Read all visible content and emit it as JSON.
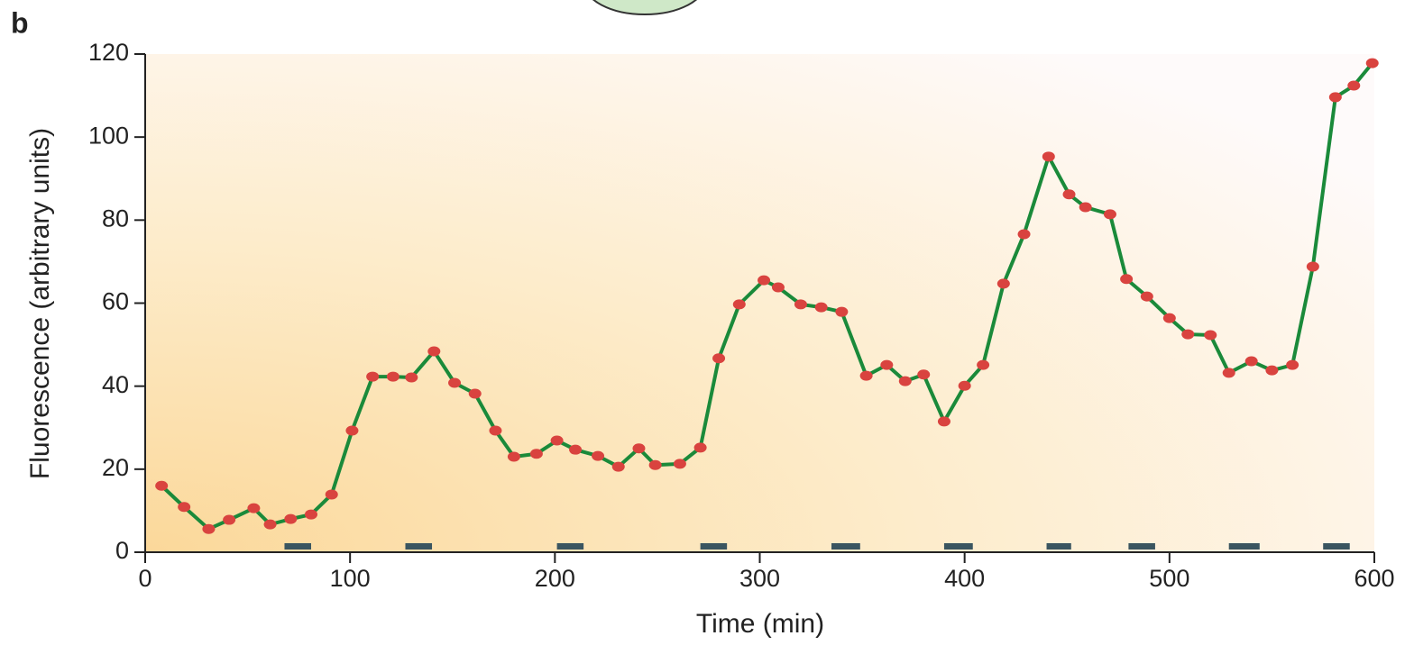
{
  "chart_data": {
    "type": "line",
    "panel_label": "b",
    "xlabel": "Time (min)",
    "ylabel": "Fluorescence (arbitrary units)",
    "xlim": [
      0,
      600
    ],
    "ylim": [
      0,
      120
    ],
    "xticks": [
      0,
      100,
      200,
      300,
      400,
      500,
      600
    ],
    "yticks": [
      0,
      20,
      40,
      60,
      80,
      100,
      120
    ],
    "color": "#1a8a3a",
    "marker_color": "#d9433f",
    "period_color": "#3a5560",
    "x": [
      8,
      19,
      31,
      41,
      53,
      61,
      71,
      81,
      91,
      101,
      111,
      121,
      130,
      141,
      151,
      161,
      171,
      180,
      191,
      201,
      210,
      221,
      231,
      241,
      249,
      261,
      271,
      280,
      290,
      302,
      309,
      320,
      330,
      340,
      352,
      362,
      371,
      380,
      390,
      400,
      409,
      419,
      429,
      441,
      451,
      459,
      471,
      479,
      489,
      500,
      509,
      520,
      529,
      540,
      550,
      560,
      570,
      581,
      590,
      599
    ],
    "values": [
      16,
      10.9,
      5.6,
      7.8,
      10.6,
      6.7,
      8,
      9.1,
      13.9,
      29.3,
      42.3,
      42.3,
      42.1,
      48.4,
      40.8,
      38.2,
      29.3,
      23,
      23.7,
      26.9,
      24.7,
      23.2,
      20.6,
      25,
      21,
      21.3,
      25.2,
      46.7,
      59.7,
      65.5,
      63.8,
      59.7,
      59,
      57.9,
      42.5,
      45.1,
      41.2,
      42.8,
      31.5,
      40.1,
      45.1,
      64.7,
      76.6,
      95.3,
      86.2,
      83.1,
      81.4,
      65.8,
      61.6,
      56.4,
      52.5,
      52.3,
      43.2,
      46,
      43.8,
      45.1,
      68.8,
      109.6,
      112.4,
      117.8
    ],
    "periods": [
      [
        68,
        81
      ],
      [
        127,
        140
      ],
      [
        201,
        214
      ],
      [
        271,
        284
      ],
      [
        335,
        349
      ],
      [
        390,
        404
      ],
      [
        440,
        452
      ],
      [
        480,
        493
      ],
      [
        529,
        544
      ],
      [
        575,
        588
      ]
    ]
  }
}
